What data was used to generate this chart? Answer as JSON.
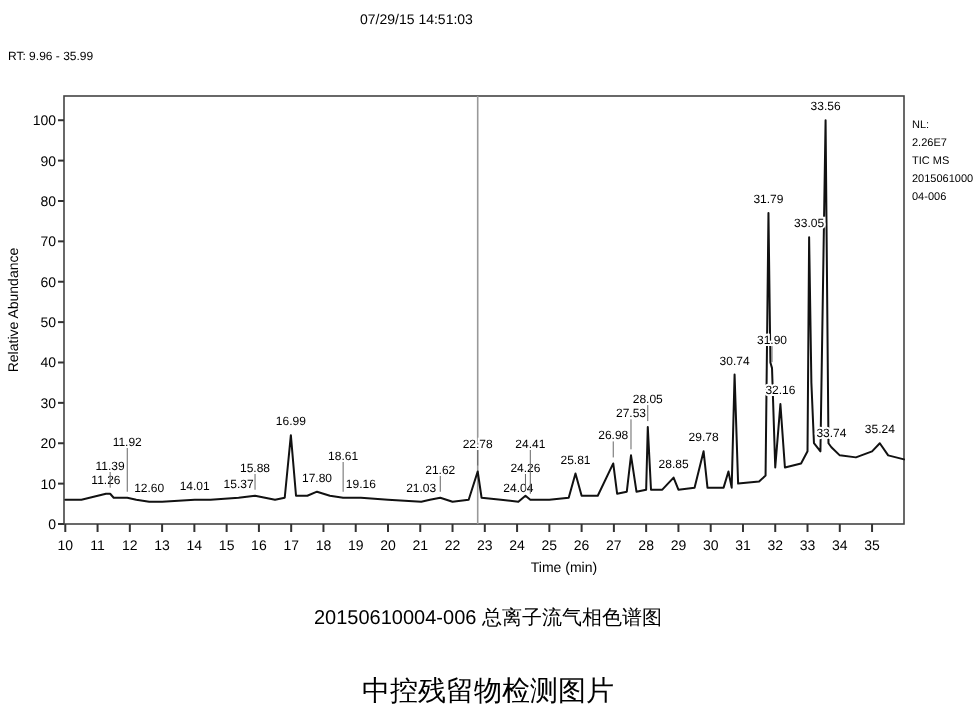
{
  "chart_data": {
    "type": "line",
    "xlabel": "Time (min)",
    "ylabel": "Relative Abundance",
    "xlim": [
      9.96,
      35.99
    ],
    "ylim": [
      0,
      106
    ],
    "xticks": [
      10,
      11,
      12,
      13,
      14,
      15,
      16,
      17,
      18,
      19,
      20,
      21,
      22,
      23,
      24,
      25,
      26,
      27,
      28,
      29,
      30,
      31,
      32,
      33,
      34,
      35
    ],
    "yticks": [
      0,
      10,
      20,
      30,
      40,
      50,
      60,
      70,
      80,
      90,
      100
    ],
    "grid": false,
    "ref_lines": [
      {
        "axis": "x",
        "value": 22.78,
        "color": "#999999"
      }
    ],
    "series": [
      {
        "color": "#111111",
        "x": [
          10,
          10.5,
          11.26,
          11.39,
          11.5,
          11.92,
          12.2,
          12.6,
          13,
          14.01,
          14.5,
          15.37,
          15.88,
          16.5,
          16.8,
          16.99,
          17.15,
          17.5,
          17.8,
          18.2,
          18.61,
          19.16,
          20,
          21.03,
          21.3,
          21.62,
          22,
          22.5,
          22.78,
          22.9,
          23.5,
          24.04,
          24.26,
          24.41,
          25,
          25.6,
          25.81,
          26,
          26.5,
          26.98,
          27.1,
          27.4,
          27.53,
          27.7,
          28,
          28.05,
          28.15,
          28.5,
          28.85,
          29,
          29.5,
          29.78,
          29.9,
          30.4,
          30.55,
          30.65,
          30.74,
          30.85,
          31.5,
          31.7,
          31.79,
          31.85,
          31.9,
          32,
          32.16,
          32.3,
          32.8,
          33,
          33.05,
          33.12,
          33.2,
          33.4,
          33.56,
          33.65,
          33.74,
          34,
          34.5,
          35,
          35.24,
          35.5,
          35.99
        ],
        "values": [
          6,
          6,
          7.5,
          7.5,
          6.5,
          6.5,
          6,
          5.5,
          5.5,
          6,
          6,
          6.5,
          7,
          6,
          6.5,
          22,
          7,
          7,
          8,
          7,
          6.5,
          6.5,
          6,
          5.5,
          6,
          6.5,
          5.5,
          6,
          13,
          6.5,
          6,
          5.5,
          7,
          6,
          6,
          6.5,
          12.5,
          7,
          7,
          15,
          7.5,
          8,
          17,
          8,
          8.5,
          24,
          8.5,
          8.5,
          11.5,
          8.5,
          9,
          18,
          9,
          9,
          13,
          9,
          37,
          10,
          10.5,
          12,
          77,
          40,
          38.6,
          14,
          29.7,
          14,
          15,
          18,
          71,
          35,
          20,
          18,
          100,
          20,
          19,
          17,
          16.5,
          18,
          20,
          17,
          16
        ]
      }
    ],
    "annotations": [
      "07/29/15 14:51:03",
      "RT: 9.96 - 35.99",
      "NL:",
      "2.26E7",
      "TIC MS",
      "2015061000",
      "04-006",
      "20150610004-006 总离子流气相色谱图",
      "中控残留物检测图片",
      {
        "text": "11.26",
        "x": 11.26,
        "y": 7.5
      },
      {
        "text": "11.39",
        "x": 11.39,
        "y": 7.5
      },
      {
        "text": "11.92",
        "x": 11.92,
        "y": 6.5
      },
      {
        "text": "12.60",
        "x": 12.6,
        "y": 5.5
      },
      {
        "text": "14.01",
        "x": 14.01,
        "y": 6
      },
      {
        "text": "15.37",
        "x": 15.37,
        "y": 6.5
      },
      {
        "text": "15.88",
        "x": 15.88,
        "y": 7
      },
      {
        "text": "16.99",
        "x": 16.99,
        "y": 22
      },
      {
        "text": "17.80",
        "x": 17.8,
        "y": 8
      },
      {
        "text": "18.61",
        "x": 18.61,
        "y": 6.5
      },
      {
        "text": "19.16",
        "x": 19.16,
        "y": 6.5
      },
      {
        "text": "21.03",
        "x": 21.03,
        "y": 5.5
      },
      {
        "text": "21.62",
        "x": 21.62,
        "y": 6.5
      },
      {
        "text": "22.78",
        "x": 22.78,
        "y": 13
      },
      {
        "text": "24.04",
        "x": 24.04,
        "y": 5.5
      },
      {
        "text": "24.26",
        "x": 24.26,
        "y": 7
      },
      {
        "text": "24.41",
        "x": 24.41,
        "y": 6
      },
      {
        "text": "25.81",
        "x": 25.81,
        "y": 12.5
      },
      {
        "text": "26.98",
        "x": 26.98,
        "y": 15
      },
      {
        "text": "27.53",
        "x": 27.53,
        "y": 17
      },
      {
        "text": "28.05",
        "x": 28.05,
        "y": 24
      },
      {
        "text": "28.85",
        "x": 28.85,
        "y": 11.5
      },
      {
        "text": "29.78",
        "x": 29.78,
        "y": 18
      },
      {
        "text": "30.74",
        "x": 30.74,
        "y": 37
      },
      {
        "text": "31.79",
        "x": 31.79,
        "y": 77
      },
      {
        "text": "31.90",
        "x": 31.9,
        "y": 38.6
      },
      {
        "text": "32.16",
        "x": 32.16,
        "y": 29.7
      },
      {
        "text": "33.05",
        "x": 33.05,
        "y": 71
      },
      {
        "text": "33.56",
        "x": 33.56,
        "y": 100
      },
      {
        "text": "33.74",
        "x": 33.74,
        "y": 19
      },
      {
        "text": "35.24",
        "x": 35.24,
        "y": 20
      }
    ]
  }
}
